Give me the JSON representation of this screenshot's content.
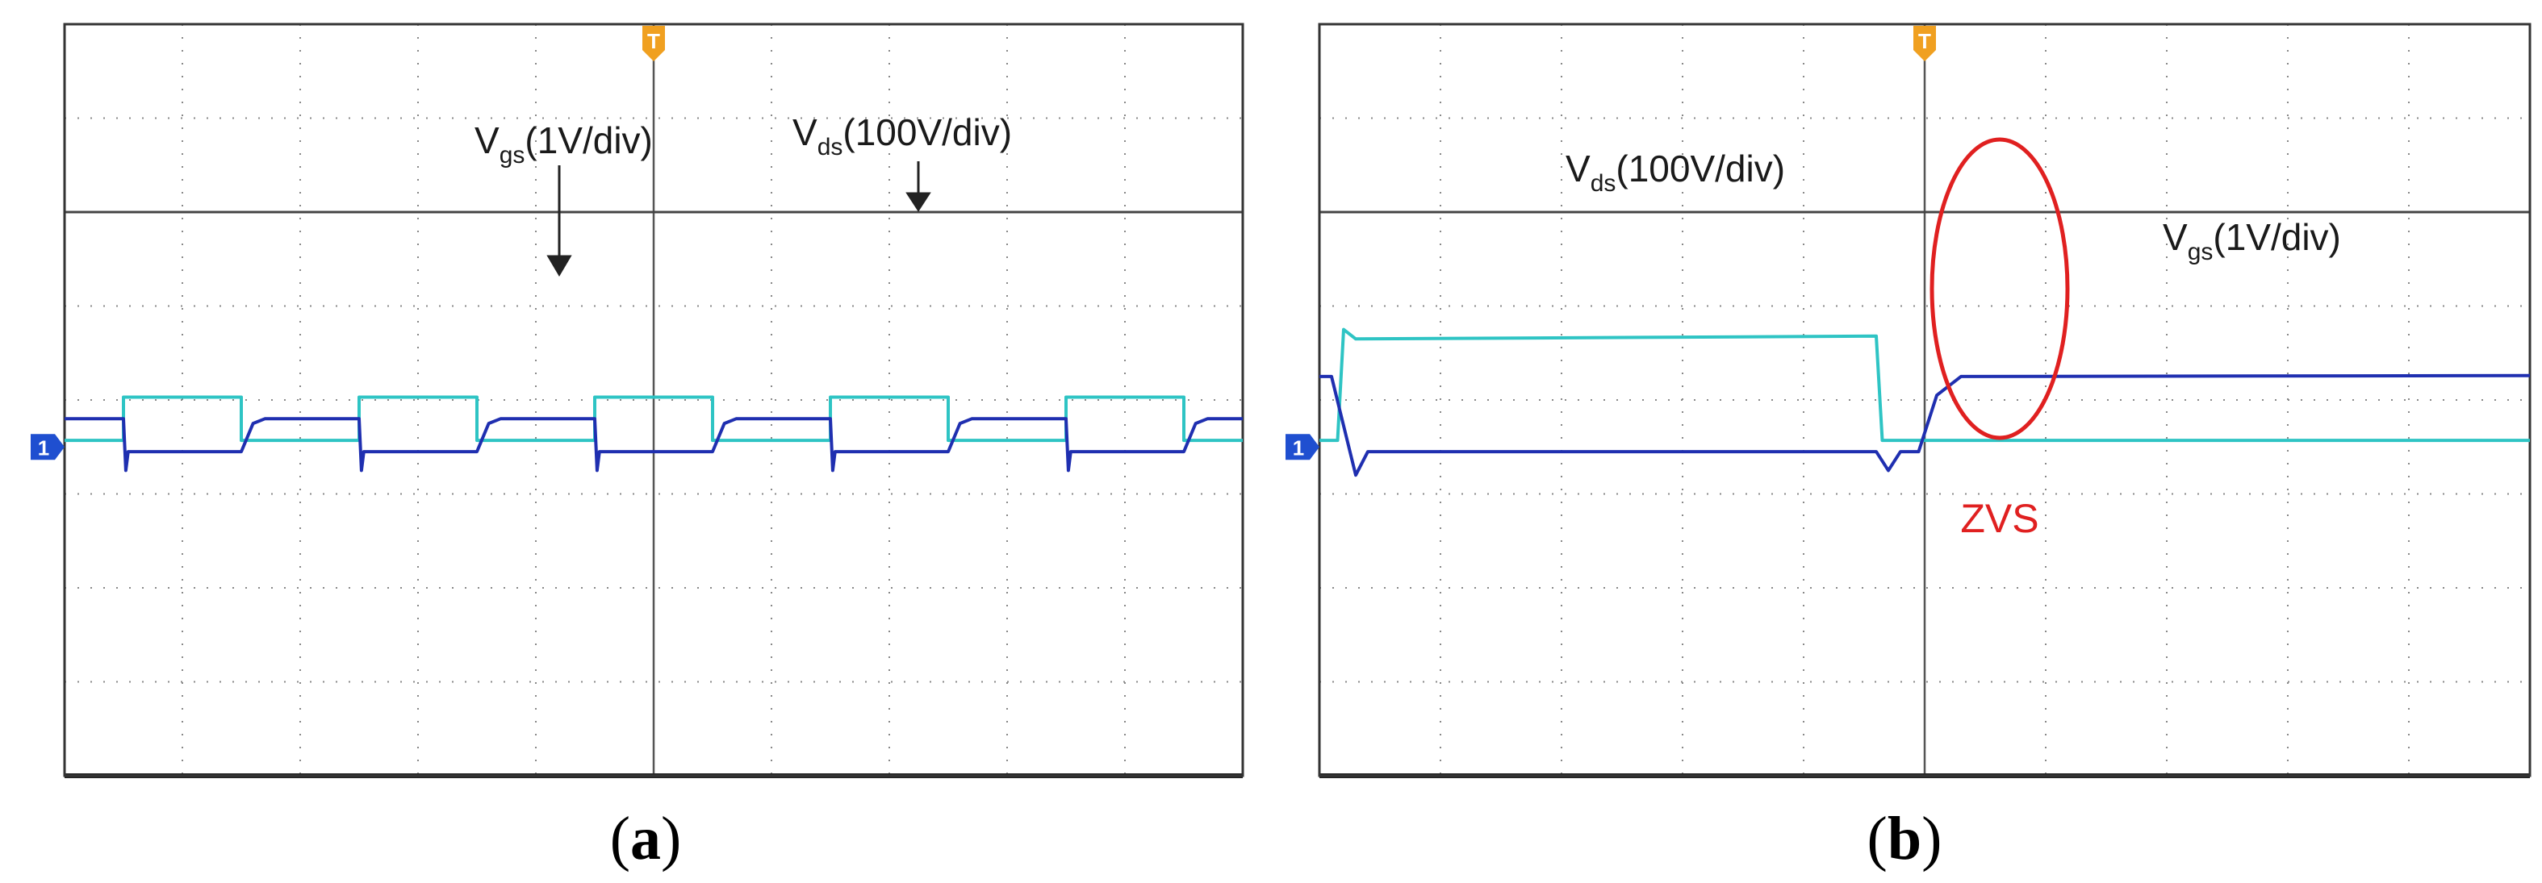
{
  "chart_data": [
    {
      "type": "line",
      "panel_label": "a",
      "grid": true,
      "grid_divisions": {
        "x": 10,
        "y": 8
      },
      "trigger_marker": "T",
      "channel_marker": "1",
      "annotations": [
        {
          "text_main": "V",
          "text_sub": "gs",
          "text_rest": "(1V/div)",
          "points_to": "Vgs high level"
        },
        {
          "text_main": "V",
          "text_sub": "ds",
          "text_rest": "(100V/div)",
          "points_to": "Vds high level"
        }
      ],
      "series": [
        {
          "name": "Vds",
          "color": "#2ec4c4",
          "points": [
            [
              0,
              0.07
            ],
            [
              0.5,
              0.07
            ],
            [
              0.5,
              0.53
            ],
            [
              1.5,
              0.53
            ],
            [
              1.5,
              0.07
            ],
            [
              2.5,
              0.07
            ],
            [
              2.5,
              0.53
            ],
            [
              3.5,
              0.53
            ],
            [
              3.5,
              0.07
            ],
            [
              4.5,
              0.07
            ],
            [
              4.5,
              0.53
            ],
            [
              5.5,
              0.53
            ],
            [
              5.5,
              0.07
            ],
            [
              6.5,
              0.07
            ],
            [
              6.5,
              0.53
            ],
            [
              7.5,
              0.53
            ],
            [
              7.5,
              0.07
            ],
            [
              8.5,
              0.07
            ],
            [
              8.5,
              0.53
            ],
            [
              9.5,
              0.53
            ],
            [
              9.5,
              0.07
            ],
            [
              10,
              0.07
            ]
          ]
        },
        {
          "name": "Vgs",
          "color": "#1f2fb0",
          "points": [
            [
              0,
              0.3
            ],
            [
              0.5,
              0.3
            ],
            [
              0.52,
              -0.25
            ],
            [
              0.54,
              -0.05
            ],
            [
              1.5,
              -0.05
            ],
            [
              1.6,
              0.25
            ],
            [
              1.7,
              0.3
            ],
            [
              2.5,
              0.3
            ],
            [
              2.52,
              -0.25
            ],
            [
              2.54,
              -0.05
            ],
            [
              3.5,
              -0.05
            ],
            [
              3.6,
              0.25
            ],
            [
              3.7,
              0.3
            ],
            [
              4.5,
              0.3
            ],
            [
              4.52,
              -0.25
            ],
            [
              4.54,
              -0.05
            ],
            [
              5.5,
              -0.05
            ],
            [
              5.6,
              0.25
            ],
            [
              5.7,
              0.3
            ],
            [
              6.5,
              0.3
            ],
            [
              6.52,
              -0.25
            ],
            [
              6.54,
              -0.05
            ],
            [
              7.5,
              -0.05
            ],
            [
              7.6,
              0.25
            ],
            [
              7.7,
              0.3
            ],
            [
              8.5,
              0.3
            ],
            [
              8.52,
              -0.25
            ],
            [
              8.54,
              -0.05
            ],
            [
              9.5,
              -0.05
            ],
            [
              9.6,
              0.25
            ],
            [
              9.7,
              0.3
            ],
            [
              10,
              0.3
            ]
          ]
        }
      ]
    },
    {
      "type": "line",
      "panel_label": "b",
      "grid": true,
      "grid_divisions": {
        "x": 10,
        "y": 8
      },
      "trigger_marker": "T",
      "channel_marker": "1",
      "annotations": [
        {
          "text_main": "V",
          "text_sub": "ds",
          "text_rest": "(100V/div)",
          "points_to": "Vds high level"
        },
        {
          "text_main": "V",
          "text_sub": "gs",
          "text_rest": "(1V/div)",
          "points_to": "Vgs high level"
        },
        {
          "text": "ZVS",
          "color": "#e02020",
          "marks": "Vds falls to zero before Vgs rises"
        }
      ],
      "series": [
        {
          "name": "Vds",
          "color": "#2ec4c4",
          "points": [
            [
              0,
              0.07
            ],
            [
              0.15,
              0.07
            ],
            [
              0.2,
              1.25
            ],
            [
              0.3,
              1.15
            ],
            [
              4.6,
              1.18
            ],
            [
              4.65,
              0.07
            ],
            [
              10,
              0.07
            ]
          ]
        },
        {
          "name": "Vgs",
          "color": "#1f2fb0",
          "points": [
            [
              0,
              0.75
            ],
            [
              0.1,
              0.75
            ],
            [
              0.3,
              -0.3
            ],
            [
              0.4,
              -0.05
            ],
            [
              4.6,
              -0.05
            ],
            [
              4.7,
              -0.25
            ],
            [
              4.8,
              -0.05
            ],
            [
              4.95,
              -0.05
            ],
            [
              5.1,
              0.55
            ],
            [
              5.3,
              0.75
            ],
            [
              10,
              0.76
            ]
          ]
        }
      ]
    }
  ]
}
